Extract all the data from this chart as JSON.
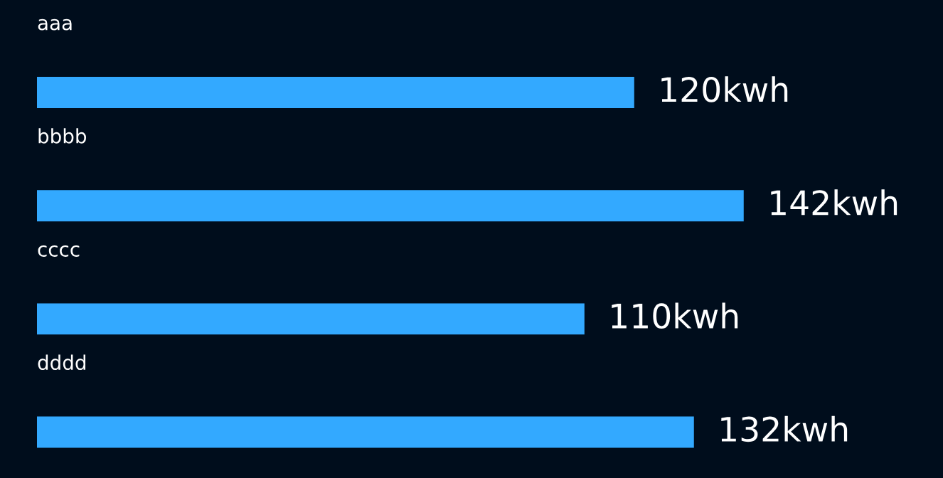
{
  "chart_data": {
    "type": "bar",
    "orientation": "horizontal",
    "categories": [
      "aaa",
      "bbbb",
      "cccc",
      "dddd"
    ],
    "series": [
      {
        "color": "#33a9ff",
        "values": [
          120,
          142,
          110,
          132
        ],
        "value_labels": [
          "120kwh",
          "142kwh",
          "110kwh",
          "132kwh"
        ]
      }
    ],
    "legend": false
  }
}
